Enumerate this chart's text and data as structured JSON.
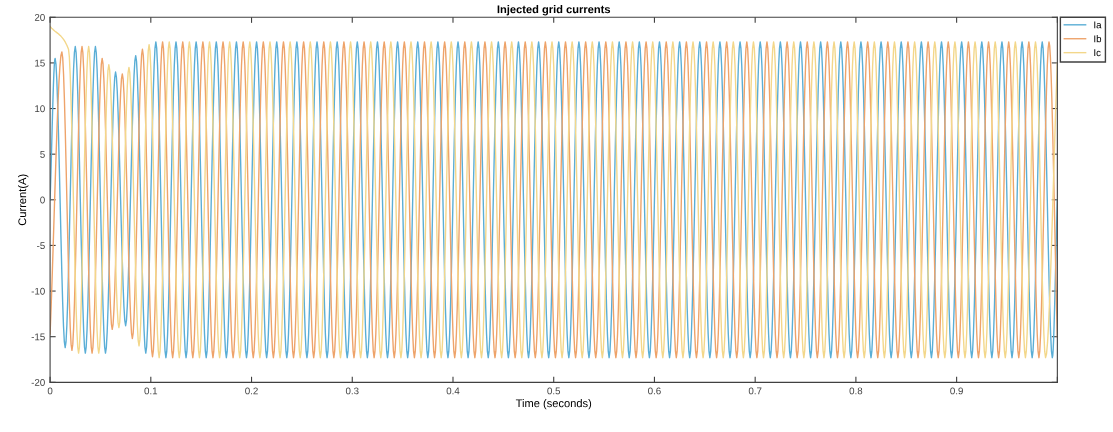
{
  "chart_data": {
    "type": "line",
    "title": "Injected grid currents",
    "xlabel": "Time (seconds)",
    "ylabel": "Current(A)",
    "xlim": [
      0,
      1
    ],
    "ylim": [
      -20,
      20
    ],
    "xticks": [
      0,
      0.1,
      0.2,
      0.3,
      0.4,
      0.5,
      0.6,
      0.7,
      0.8,
      0.9,
      {
        "value": 1,
        "label": null
      }
    ],
    "yticks": [
      -20,
      -15,
      -10,
      -5,
      0,
      5,
      10,
      15,
      20
    ],
    "grid": false,
    "legend": "top right",
    "line_style": "solid",
    "marker": "none",
    "series": [
      {
        "name": "Ia",
        "color": "#5aaed6",
        "x": [
          0,
          0.005,
          0.015,
          0.025,
          0.035,
          0.045,
          0.055,
          0.065,
          0.075,
          0.085,
          0.095,
          0.105,
          0.115,
          0.125,
          0.135,
          0.145,
          0.155,
          0.165,
          0.175,
          0.185,
          0.195,
          0.205,
          0.215,
          0.225,
          0.235,
          0.245,
          0.255,
          0.265,
          0.275,
          0.285,
          0.295,
          0.305,
          0.315,
          0.325,
          0.335,
          0.345,
          0.355,
          0.365,
          0.375,
          0.385,
          0.395,
          0.405,
          0.415,
          0.425,
          0.435,
          0.445,
          0.455,
          0.465,
          0.475,
          0.485,
          0.495,
          0.505,
          0.515,
          0.525,
          0.535,
          0.545,
          0.555,
          0.565,
          0.575,
          0.585,
          0.595,
          0.605,
          0.615,
          0.625,
          0.635,
          0.645,
          0.655,
          0.665,
          0.675,
          0.685,
          0.695,
          0.705,
          0.715,
          0.725,
          0.735,
          0.745,
          0.755,
          0.765,
          0.775,
          0.785,
          0.795,
          0.805,
          0.815,
          0.825,
          0.835,
          0.845,
          0.855,
          0.865,
          0.875,
          0.885,
          0.895,
          0.905,
          0.915,
          0.925,
          0.935,
          0.945,
          0.955,
          0.965,
          0.975,
          0.985,
          0.995,
          1
        ],
        "values": [
          0,
          15.5,
          -16.2,
          16.8,
          -16.8,
          16.8,
          -16.8,
          14,
          -13.8,
          15.8,
          -16.8,
          17.3,
          -17.3,
          17.3,
          -17.3,
          17.3,
          -17.3,
          17.3,
          -17.3,
          17.3,
          -17.3,
          17.3,
          -17.3,
          17.3,
          -17.3,
          17.3,
          -17.3,
          17.3,
          -17.3,
          17.3,
          -17.3,
          17.3,
          -17.3,
          17.3,
          -17.3,
          17.3,
          -17.3,
          17.3,
          -17.3,
          17.3,
          -17.3,
          17.3,
          -17.3,
          17.3,
          -17.3,
          17.3,
          -17.3,
          17.3,
          -17.3,
          17.3,
          -17.3,
          17.3,
          -17.3,
          17.3,
          -17.3,
          17.3,
          -17.3,
          17.3,
          -17.3,
          17.3,
          -17.3,
          17.3,
          -17.3,
          17.3,
          -17.3,
          17.3,
          -17.3,
          17.3,
          -17.3,
          17.3,
          -17.3,
          17.3,
          -17.3,
          17.3,
          -17.3,
          17.3,
          -17.3,
          17.3,
          -17.3,
          17.3,
          -17.3,
          17.3,
          -17.3,
          17.3,
          -17.3,
          17.3,
          -17.3,
          17.3,
          -17.3,
          17.3,
          -17.3,
          17.3,
          -17.3,
          17.3,
          -17.3,
          17.3,
          -17.3,
          17.3,
          -17.3,
          17.3,
          -17.3,
          0
        ]
      },
      {
        "name": "Ib",
        "color": "#eea36a",
        "x": [
          0,
          0.0117,
          0.0217,
          0.0317,
          0.0417,
          0.0517,
          0.0617,
          0.0717,
          0.0817,
          0.0917,
          0.1017,
          0.1117,
          0.1217,
          0.1317,
          0.1417,
          0.1517,
          0.1617,
          0.1717,
          0.1817,
          0.1917,
          0.2017,
          0.2117,
          0.2217,
          0.2317,
          0.2417,
          0.2517,
          0.2617,
          0.2717,
          0.2817,
          0.2917,
          0.3017,
          0.3117,
          0.3217,
          0.3317,
          0.3417,
          0.3517,
          0.3617,
          0.3717,
          0.3817,
          0.3917,
          0.4017,
          0.4117,
          0.4217,
          0.4317,
          0.4417,
          0.4517,
          0.4617,
          0.4717,
          0.4817,
          0.4917,
          0.5017,
          0.5117,
          0.5217,
          0.5317,
          0.5417,
          0.5517,
          0.5617,
          0.5717,
          0.5817,
          0.5917,
          0.6017,
          0.6117,
          0.6217,
          0.6317,
          0.6417,
          0.6517,
          0.6617,
          0.6717,
          0.6817,
          0.6917,
          0.7017,
          0.7117,
          0.7217,
          0.7317,
          0.7417,
          0.7517,
          0.7617,
          0.7717,
          0.7817,
          0.7917,
          0.8017,
          0.8117,
          0.8217,
          0.8317,
          0.8417,
          0.8517,
          0.8617,
          0.8717,
          0.8817,
          0.8917,
          0.9017,
          0.9117,
          0.9217,
          0.9317,
          0.9417,
          0.9517,
          0.9617,
          0.9717,
          0.9817,
          0.9917,
          1
        ],
        "values": [
          -14.7,
          16.2,
          -16.5,
          16.8,
          -16.8,
          15.5,
          -14.2,
          13.8,
          -15.2,
          16.5,
          -17.2,
          17.3,
          -17.3,
          17.3,
          -17.3,
          17.3,
          -17.3,
          17.3,
          -17.3,
          17.3,
          -17.3,
          17.3,
          -17.3,
          17.3,
          -17.3,
          17.3,
          -17.3,
          17.3,
          -17.3,
          17.3,
          -17.3,
          17.3,
          -17.3,
          17.3,
          -17.3,
          17.3,
          -17.3,
          17.3,
          -17.3,
          17.3,
          -17.3,
          17.3,
          -17.3,
          17.3,
          -17.3,
          17.3,
          -17.3,
          17.3,
          -17.3,
          17.3,
          -17.3,
          17.3,
          -17.3,
          17.3,
          -17.3,
          17.3,
          -17.3,
          17.3,
          -17.3,
          17.3,
          -17.3,
          17.3,
          -17.3,
          17.3,
          -17.3,
          17.3,
          -17.3,
          17.3,
          -17.3,
          17.3,
          -17.3,
          17.3,
          -17.3,
          17.3,
          -17.3,
          17.3,
          -17.3,
          17.3,
          -17.3,
          17.3,
          -17.3,
          17.3,
          -17.3,
          17.3,
          -17.3,
          17.3,
          -17.3,
          17.3,
          -17.3,
          17.3,
          -17.3,
          17.3,
          -17.3,
          17.3,
          -17.3,
          17.3,
          -17.3,
          17.3,
          -17.3,
          17.3,
          -15
        ]
      },
      {
        "name": "Ic",
        "color": "#f3d78a",
        "x": [
          0,
          0.0183,
          0.0283,
          0.0383,
          0.0483,
          0.0583,
          0.0683,
          0.0783,
          0.0883,
          0.0983,
          0.1083,
          0.1183,
          0.1283,
          0.1383,
          0.1483,
          0.1583,
          0.1683,
          0.1783,
          0.1883,
          0.1983,
          0.2083,
          0.2183,
          0.2283,
          0.2383,
          0.2483,
          0.2583,
          0.2683,
          0.2783,
          0.2883,
          0.2983,
          0.3083,
          0.3183,
          0.3283,
          0.3383,
          0.3483,
          0.3583,
          0.3683,
          0.3783,
          0.3883,
          0.3983,
          0.4083,
          0.4183,
          0.4283,
          0.4383,
          0.4483,
          0.4583,
          0.4683,
          0.4783,
          0.4883,
          0.4983,
          0.5083,
          0.5183,
          0.5283,
          0.5383,
          0.5483,
          0.5583,
          0.5683,
          0.5783,
          0.5883,
          0.5983,
          0.6083,
          0.6183,
          0.6283,
          0.6383,
          0.6483,
          0.6583,
          0.6683,
          0.6783,
          0.6883,
          0.6983,
          0.7083,
          0.7183,
          0.7283,
          0.7383,
          0.7483,
          0.7583,
          0.7683,
          0.7783,
          0.7883,
          0.7983,
          0.8083,
          0.8183,
          0.8283,
          0.8383,
          0.8483,
          0.8583,
          0.8683,
          0.8783,
          0.8883,
          0.8983,
          0.9083,
          0.9183,
          0.9283,
          0.9383,
          0.9483,
          0.9583,
          0.9683,
          0.9783,
          0.9883,
          1
        ],
        "values": [
          19,
          16.5,
          -16.8,
          16.8,
          -16.8,
          14.8,
          -14,
          14.5,
          -16,
          17,
          -17.3,
          17.3,
          -17.3,
          17.3,
          -17.3,
          17.3,
          -17.3,
          17.3,
          -17.3,
          17.3,
          -17.3,
          17.3,
          -17.3,
          17.3,
          -17.3,
          17.3,
          -17.3,
          17.3,
          -17.3,
          17.3,
          -17.3,
          17.3,
          -17.3,
          17.3,
          -17.3,
          17.3,
          -17.3,
          17.3,
          -17.3,
          17.3,
          -17.3,
          17.3,
          -17.3,
          17.3,
          -17.3,
          17.3,
          -17.3,
          17.3,
          -17.3,
          17.3,
          -17.3,
          17.3,
          -17.3,
          17.3,
          -17.3,
          17.3,
          -17.3,
          17.3,
          -17.3,
          17.3,
          -17.3,
          17.3,
          -17.3,
          17.3,
          -17.3,
          17.3,
          -17.3,
          17.3,
          -17.3,
          17.3,
          -17.3,
          17.3,
          -17.3,
          17.3,
          -17.3,
          17.3,
          -17.3,
          17.3,
          -17.3,
          17.3,
          -17.3,
          17.3,
          -17.3,
          17.3,
          -17.3,
          17.3,
          -17.3,
          17.3,
          -17.3,
          17.3,
          -17.3,
          17.3,
          -17.3,
          17.3,
          -17.3,
          17.3,
          -17.3,
          17.3,
          -17.3,
          15
        ]
      }
    ]
  }
}
